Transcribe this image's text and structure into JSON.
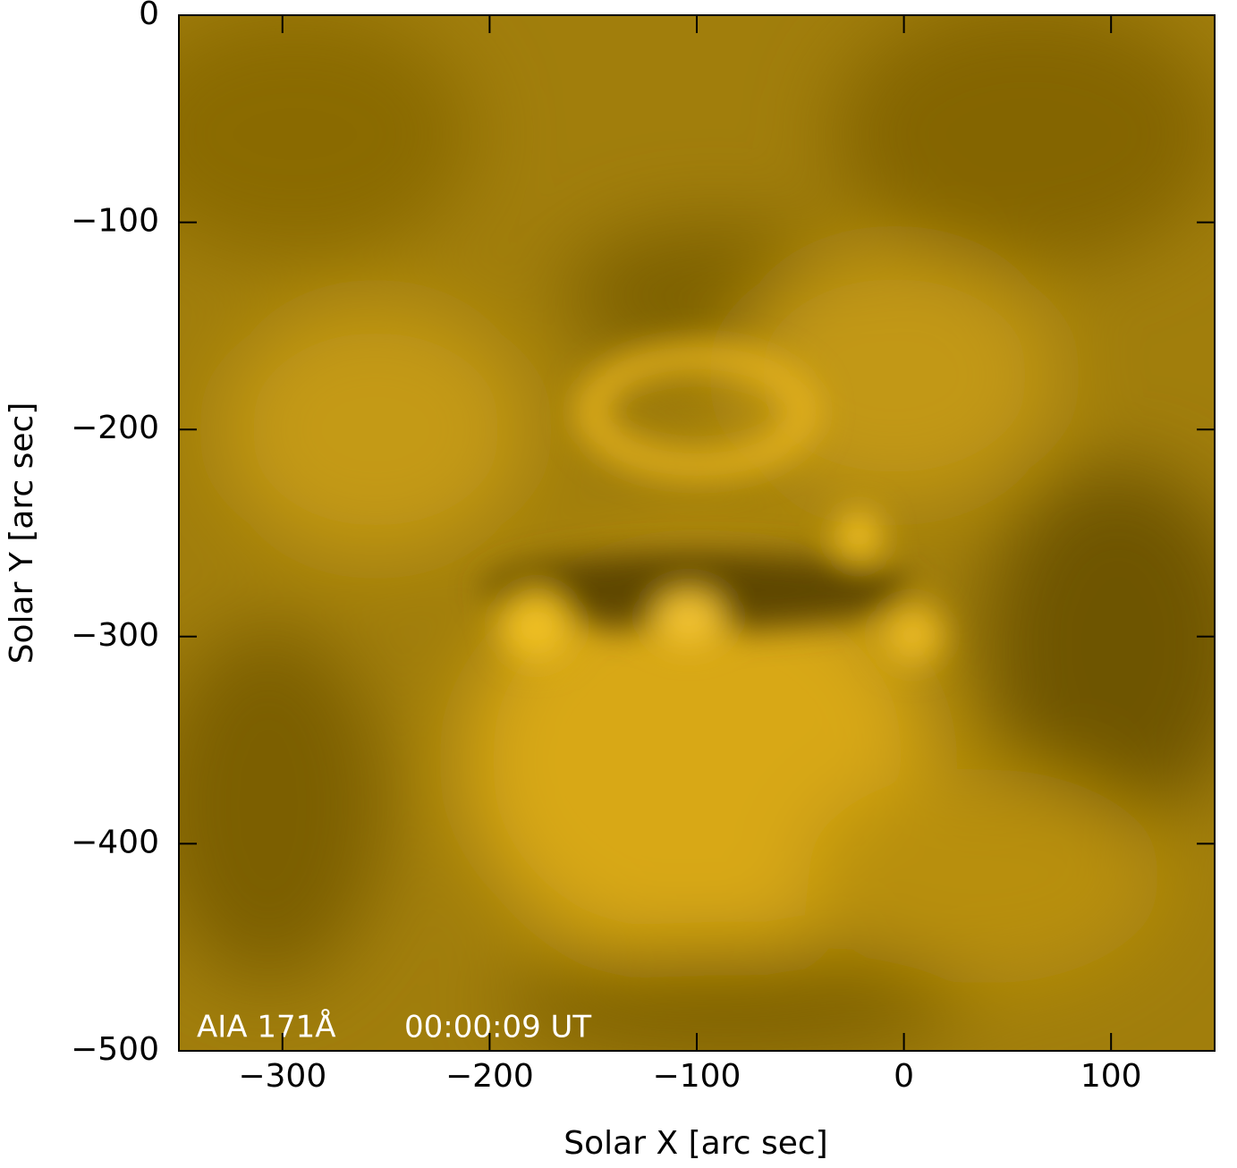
{
  "chart_data": {
    "type": "image",
    "xlabel": "Solar X [arc sec]",
    "ylabel": "Solar Y [arc sec]",
    "annotations": [
      "AIA 171Å",
      "00:00:09 UT"
    ],
    "xlim": [
      -350,
      150
    ],
    "ylim": [
      -500,
      0
    ],
    "xticks": [
      {
        "value": -300,
        "label": "−300"
      },
      {
        "value": -200,
        "label": "−200"
      },
      {
        "value": -100,
        "label": "−100"
      },
      0,
      100
    ],
    "yticks": [
      0,
      {
        "value": -100,
        "label": "−100"
      },
      {
        "value": -200,
        "label": "−200"
      },
      {
        "value": -300,
        "label": "−300"
      },
      {
        "value": -400,
        "label": "−400"
      },
      {
        "value": -500,
        "label": "−500"
      }
    ]
  }
}
